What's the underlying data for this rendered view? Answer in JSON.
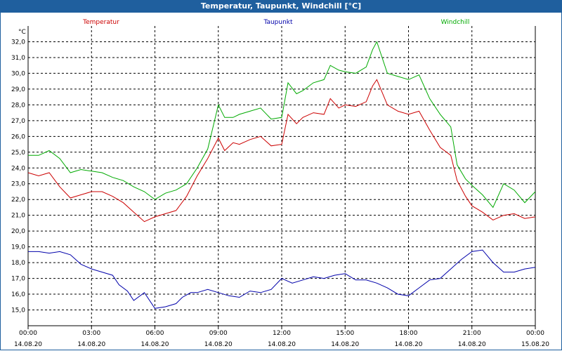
{
  "window": {
    "title": "Temperatur, Taupunkt, Windchill [°C]"
  },
  "chart_data": {
    "type": "line",
    "title": "Temperatur, Taupunkt, Windchill [°C]",
    "ylabel": "°C",
    "ylim": [
      14.0,
      33.0
    ],
    "yticks": [
      "15,0",
      "16,0",
      "17,0",
      "18,0",
      "19,0",
      "20,0",
      "21,0",
      "22,0",
      "23,0",
      "24,0",
      "25,0",
      "26,0",
      "27,0",
      "28,0",
      "29,0",
      "30,0",
      "31,0",
      "32,0"
    ],
    "xlim": [
      0,
      24
    ],
    "xticks": [
      {
        "time": "00:00",
        "date": "14.08.20"
      },
      {
        "time": "03:00",
        "date": "14.08.20"
      },
      {
        "time": "06:00",
        "date": "14.08.20"
      },
      {
        "time": "09:00",
        "date": "14.08.20"
      },
      {
        "time": "12:00",
        "date": "14.08.20"
      },
      {
        "time": "15:00",
        "date": "14.08.20"
      },
      {
        "time": "18:00",
        "date": "14.08.20"
      },
      {
        "time": "21:00",
        "date": "14.08.20"
      },
      {
        "time": "00:00",
        "date": "15.08.20"
      }
    ],
    "grid": true,
    "legend_position": "top",
    "series": [
      {
        "name": "Temperatur",
        "color": "#cc0000",
        "points": [
          [
            0,
            23.7
          ],
          [
            0.5,
            23.5
          ],
          [
            1,
            23.7
          ],
          [
            1.5,
            22.8
          ],
          [
            2,
            22.1
          ],
          [
            2.5,
            22.3
          ],
          [
            3,
            22.5
          ],
          [
            3.5,
            22.5
          ],
          [
            4,
            22.2
          ],
          [
            4.5,
            21.8
          ],
          [
            5,
            21.2
          ],
          [
            5.5,
            20.6
          ],
          [
            6,
            20.9
          ],
          [
            6.5,
            21.1
          ],
          [
            7,
            21.3
          ],
          [
            7.5,
            22.2
          ],
          [
            8,
            23.5
          ],
          [
            8.5,
            24.6
          ],
          [
            9,
            25.9
          ],
          [
            9.3,
            25.1
          ],
          [
            9.7,
            25.6
          ],
          [
            10,
            25.5
          ],
          [
            10.5,
            25.8
          ],
          [
            11,
            26.0
          ],
          [
            11.5,
            25.4
          ],
          [
            12,
            25.5
          ],
          [
            12.3,
            27.4
          ],
          [
            12.7,
            26.8
          ],
          [
            13,
            27.2
          ],
          [
            13.5,
            27.5
          ],
          [
            14,
            27.4
          ],
          [
            14.3,
            28.4
          ],
          [
            14.7,
            27.8
          ],
          [
            15,
            28.0
          ],
          [
            15.5,
            27.9
          ],
          [
            16,
            28.2
          ],
          [
            16.3,
            29.2
          ],
          [
            16.5,
            29.6
          ],
          [
            17,
            28.0
          ],
          [
            17.5,
            27.6
          ],
          [
            18,
            27.4
          ],
          [
            18.5,
            27.6
          ],
          [
            19,
            26.4
          ],
          [
            19.5,
            25.3
          ],
          [
            20,
            24.8
          ],
          [
            20.3,
            23.2
          ],
          [
            20.7,
            22.2
          ],
          [
            21,
            21.6
          ],
          [
            21.5,
            21.2
          ],
          [
            22,
            20.7
          ],
          [
            22.5,
            21.0
          ],
          [
            23,
            21.1
          ],
          [
            23.5,
            20.8
          ],
          [
            24,
            20.9
          ]
        ]
      },
      {
        "name": "Taupunkt",
        "color": "#0000aa",
        "points": [
          [
            0,
            18.7
          ],
          [
            0.5,
            18.7
          ],
          [
            1,
            18.6
          ],
          [
            1.5,
            18.7
          ],
          [
            2,
            18.5
          ],
          [
            2.5,
            17.9
          ],
          [
            3,
            17.6
          ],
          [
            3.5,
            17.4
          ],
          [
            4,
            17.2
          ],
          [
            4.3,
            16.6
          ],
          [
            4.7,
            16.2
          ],
          [
            5,
            15.6
          ],
          [
            5.5,
            16.1
          ],
          [
            6,
            15.1
          ],
          [
            6.5,
            15.2
          ],
          [
            7,
            15.4
          ],
          [
            7.3,
            15.8
          ],
          [
            7.7,
            16.1
          ],
          [
            8,
            16.1
          ],
          [
            8.5,
            16.3
          ],
          [
            9,
            16.1
          ],
          [
            9.5,
            15.9
          ],
          [
            10,
            15.8
          ],
          [
            10.5,
            16.2
          ],
          [
            11,
            16.1
          ],
          [
            11.5,
            16.3
          ],
          [
            12,
            17.0
          ],
          [
            12.5,
            16.7
          ],
          [
            13,
            16.9
          ],
          [
            13.5,
            17.1
          ],
          [
            14,
            17.0
          ],
          [
            14.5,
            17.2
          ],
          [
            15,
            17.3
          ],
          [
            15.5,
            16.9
          ],
          [
            16,
            16.9
          ],
          [
            16.5,
            16.7
          ],
          [
            17,
            16.4
          ],
          [
            17.5,
            16.0
          ],
          [
            18,
            15.9
          ],
          [
            18.5,
            16.4
          ],
          [
            19,
            16.9
          ],
          [
            19.5,
            17.0
          ],
          [
            20,
            17.6
          ],
          [
            20.5,
            18.2
          ],
          [
            21,
            18.7
          ],
          [
            21.5,
            18.8
          ],
          [
            22,
            18.0
          ],
          [
            22.5,
            17.4
          ],
          [
            23,
            17.4
          ],
          [
            23.5,
            17.6
          ],
          [
            24,
            17.7
          ]
        ]
      },
      {
        "name": "Windchill",
        "color": "#00aa00",
        "points": [
          [
            0,
            24.8
          ],
          [
            0.5,
            24.8
          ],
          [
            1,
            25.1
          ],
          [
            1.5,
            24.6
          ],
          [
            2,
            23.7
          ],
          [
            2.5,
            23.9
          ],
          [
            3,
            23.8
          ],
          [
            3.5,
            23.7
          ],
          [
            4,
            23.4
          ],
          [
            4.5,
            23.2
          ],
          [
            5,
            22.8
          ],
          [
            5.5,
            22.5
          ],
          [
            6,
            22.0
          ],
          [
            6.5,
            22.4
          ],
          [
            7,
            22.6
          ],
          [
            7.5,
            23.0
          ],
          [
            8,
            24.0
          ],
          [
            8.5,
            25.2
          ],
          [
            9,
            28.0
          ],
          [
            9.3,
            27.2
          ],
          [
            9.7,
            27.2
          ],
          [
            10,
            27.4
          ],
          [
            10.5,
            27.6
          ],
          [
            11,
            27.8
          ],
          [
            11.5,
            27.1
          ],
          [
            12,
            27.2
          ],
          [
            12.3,
            29.4
          ],
          [
            12.7,
            28.7
          ],
          [
            13,
            28.9
          ],
          [
            13.5,
            29.4
          ],
          [
            14,
            29.6
          ],
          [
            14.3,
            30.5
          ],
          [
            14.7,
            30.2
          ],
          [
            15,
            30.1
          ],
          [
            15.5,
            30.0
          ],
          [
            16,
            30.4
          ],
          [
            16.3,
            31.5
          ],
          [
            16.5,
            32.0
          ],
          [
            17,
            30.0
          ],
          [
            17.5,
            29.8
          ],
          [
            18,
            29.6
          ],
          [
            18.5,
            29.9
          ],
          [
            19,
            28.4
          ],
          [
            19.5,
            27.4
          ],
          [
            20,
            26.6
          ],
          [
            20.3,
            24.2
          ],
          [
            20.7,
            23.3
          ],
          [
            21,
            22.9
          ],
          [
            21.5,
            22.3
          ],
          [
            22,
            21.5
          ],
          [
            22.5,
            23.0
          ],
          [
            23,
            22.6
          ],
          [
            23.5,
            21.8
          ],
          [
            24,
            22.5
          ]
        ]
      }
    ]
  }
}
